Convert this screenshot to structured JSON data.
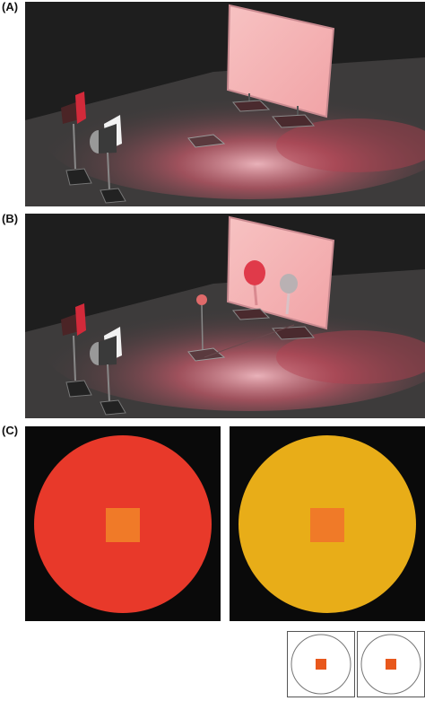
{
  "figure": {
    "panel_a": {
      "label": "(A)"
    },
    "panel_b": {
      "label": "(B)"
    },
    "panel_c": {
      "label": "(C)",
      "stimuli": [
        {
          "disk_color": "#e8392a",
          "patch_color": "#f07a28"
        },
        {
          "disk_color": "#e8ad18",
          "patch_color": "#f07a28"
        }
      ],
      "thumbnails": [
        {
          "patch_color": "#e8581c"
        },
        {
          "patch_color": "#e8581c"
        }
      ]
    }
  }
}
